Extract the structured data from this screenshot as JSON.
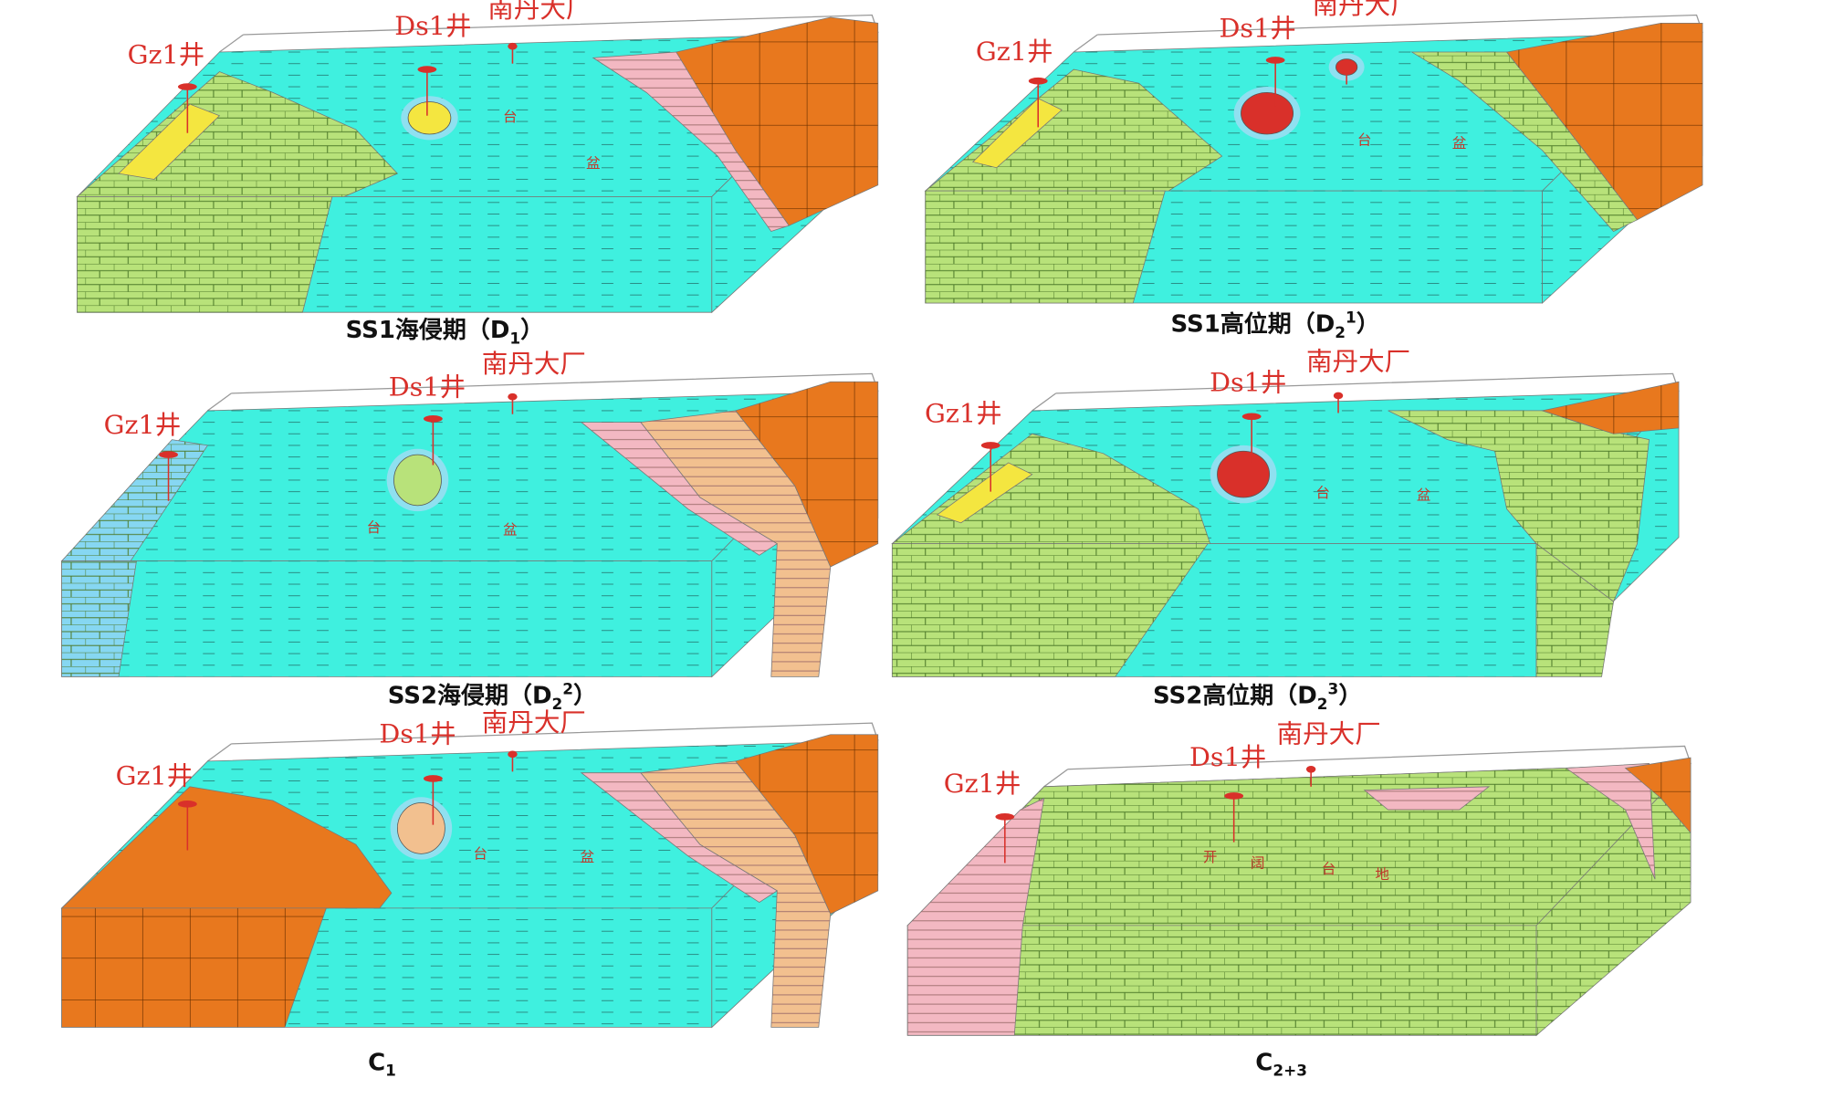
{
  "panels": [
    {
      "wells": {
        "gz1": "Gz1井",
        "ds1": "Ds1井",
        "nandan": "南丹大厂"
      },
      "labels": [
        "台",
        "盆"
      ],
      "caption": {
        "main": "SS1海侵期（D",
        "sub": "1",
        "close": "）"
      }
    },
    {
      "wells": {
        "gz1": "Gz1井",
        "ds1": "Ds1井",
        "nandan": "南丹大厂"
      },
      "labels": [
        "台",
        "盆"
      ],
      "caption": {
        "main": "SS1高位期（D",
        "sub": "2",
        "sup": "1",
        "close": "）"
      }
    },
    {
      "wells": {
        "gz1": "Gz1井",
        "ds1": "Ds1井",
        "nandan": "南丹大厂"
      },
      "labels": [
        "台",
        "盆"
      ],
      "caption": {
        "main": "SS2海侵期（D",
        "sub": "2",
        "sup": "2",
        "close": "）"
      }
    },
    {
      "wells": {
        "gz1": "Gz1井",
        "ds1": "Ds1井",
        "nandan": "南丹大厂"
      },
      "labels": [
        "台",
        "盆"
      ],
      "caption": {
        "main": "SS2高位期（D",
        "sub": "2",
        "sup": "3",
        "close": "）"
      }
    },
    {
      "wells": {
        "gz1": "Gz1井",
        "ds1": "Ds1井",
        "nandan": "南丹大厂"
      },
      "labels": [
        "台",
        "盆"
      ],
      "caption": {
        "main": "C",
        "sub": "1"
      }
    },
    {
      "wells": {
        "gz1": "Gz1井",
        "ds1": "Ds1井",
        "nandan": "南丹大厂"
      },
      "labels": [
        "开",
        "阔",
        "台",
        "地"
      ],
      "caption": {
        "main": "C",
        "sub": "2+3"
      }
    }
  ]
}
